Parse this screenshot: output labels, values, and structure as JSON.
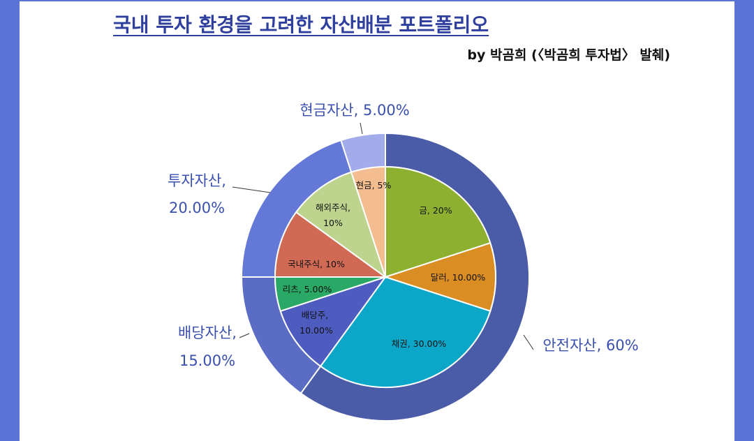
{
  "chart_data": {
    "type": "pie",
    "title": "국내 투자 환경을 고려한 자산배분 포트폴리오",
    "subtitle": "by 박곰희 (〈박곰희 투자법〉 발췌)",
    "outer_ring": [
      {
        "name": "안전자산",
        "value": 60,
        "label": "안전자산, 60%",
        "color": "#4a5ba8"
      },
      {
        "name": "배당자산",
        "value": 15,
        "label_line1": "배당자산,",
        "label_line2": "15.00%",
        "color": "#5a6cc4"
      },
      {
        "name": "투자자산",
        "value": 20,
        "label_line1": "투자자산,",
        "label_line2": "20.00%",
        "color": "#6478d8"
      },
      {
        "name": "현금자산",
        "value": 5,
        "label": "현금자산, 5.00%",
        "color": "#a3acea"
      }
    ],
    "inner_pie": [
      {
        "name": "금",
        "value": 20,
        "label": "금, 20%",
        "color": "#8db030"
      },
      {
        "name": "달러",
        "value": 10,
        "label": "달러, 10.00%",
        "color": "#d98d22"
      },
      {
        "name": "채권",
        "value": 30,
        "label": "채권, 30.00%",
        "color": "#0ba6c8"
      },
      {
        "name": "배당주",
        "value": 10,
        "label_line1": "배당주,",
        "label_line2": "10.00%",
        "color": "#4e5cc0"
      },
      {
        "name": "리츠",
        "value": 5,
        "label": "리츠, 5.00%",
        "color": "#2aa866"
      },
      {
        "name": "국내주식",
        "value": 10,
        "label": "국내주식, 10%",
        "color": "#d06a54"
      },
      {
        "name": "해외주식",
        "value": 10,
        "label_line1": "해외주식,",
        "label_line2": "10%",
        "color": "#bed48e"
      },
      {
        "name": "현금",
        "value": 5,
        "label": "현금, 5%",
        "color": "#f4bd90"
      }
    ]
  }
}
